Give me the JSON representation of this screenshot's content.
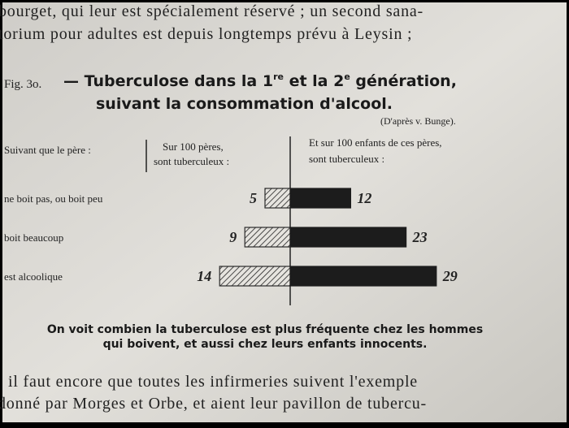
{
  "page": {
    "top_lines": [
      "bourget, qui leur est spécialement réservé ; un second sana-",
      "torium pour adultes est depuis longtemps prévu à Leysin ;"
    ],
    "figure_label": "Fig. 3o.",
    "title_parts": [
      "— Tuberculose dans la 1",
      "re",
      " et la 2",
      "e",
      " génération,"
    ],
    "title_line2": "suivant la consommation d'alcool.",
    "source": "(D'après v. Bunge).",
    "headers": {
      "category": "Suivant que le père :",
      "left": [
        "Sur 100 pères,",
        "sont tuberculeux :"
      ],
      "right": [
        "Et sur 100 enfants de ces pères,",
        "sont tuberculeux :"
      ]
    },
    "caption": [
      "On voit combien la tuberculose est plus fréquente chez les hommes",
      "qui boivent, et aussi chez leurs enfants innocents."
    ],
    "bottom_lines": [
      "il faut encore que toutes les infirmeries suivent l'exemple",
      "donné par Morges et Orbe, et aient leur pavillon de tubercu-"
    ]
  },
  "chart_data": {
    "type": "butterfly-bar",
    "categories": [
      "ne boit pas, ou boit peu",
      "boit beaucoup",
      "est alcoolique"
    ],
    "series": [
      {
        "color": "#2a2a2a",
        "pattern": "hatch",
        "side": "left",
        "values": [
          5,
          9,
          14
        ]
      },
      {
        "color": "#1c1c1c",
        "pattern": "solid",
        "side": "right",
        "values": [
          12,
          23,
          29
        ]
      }
    ],
    "xlim": [
      0,
      30
    ]
  }
}
